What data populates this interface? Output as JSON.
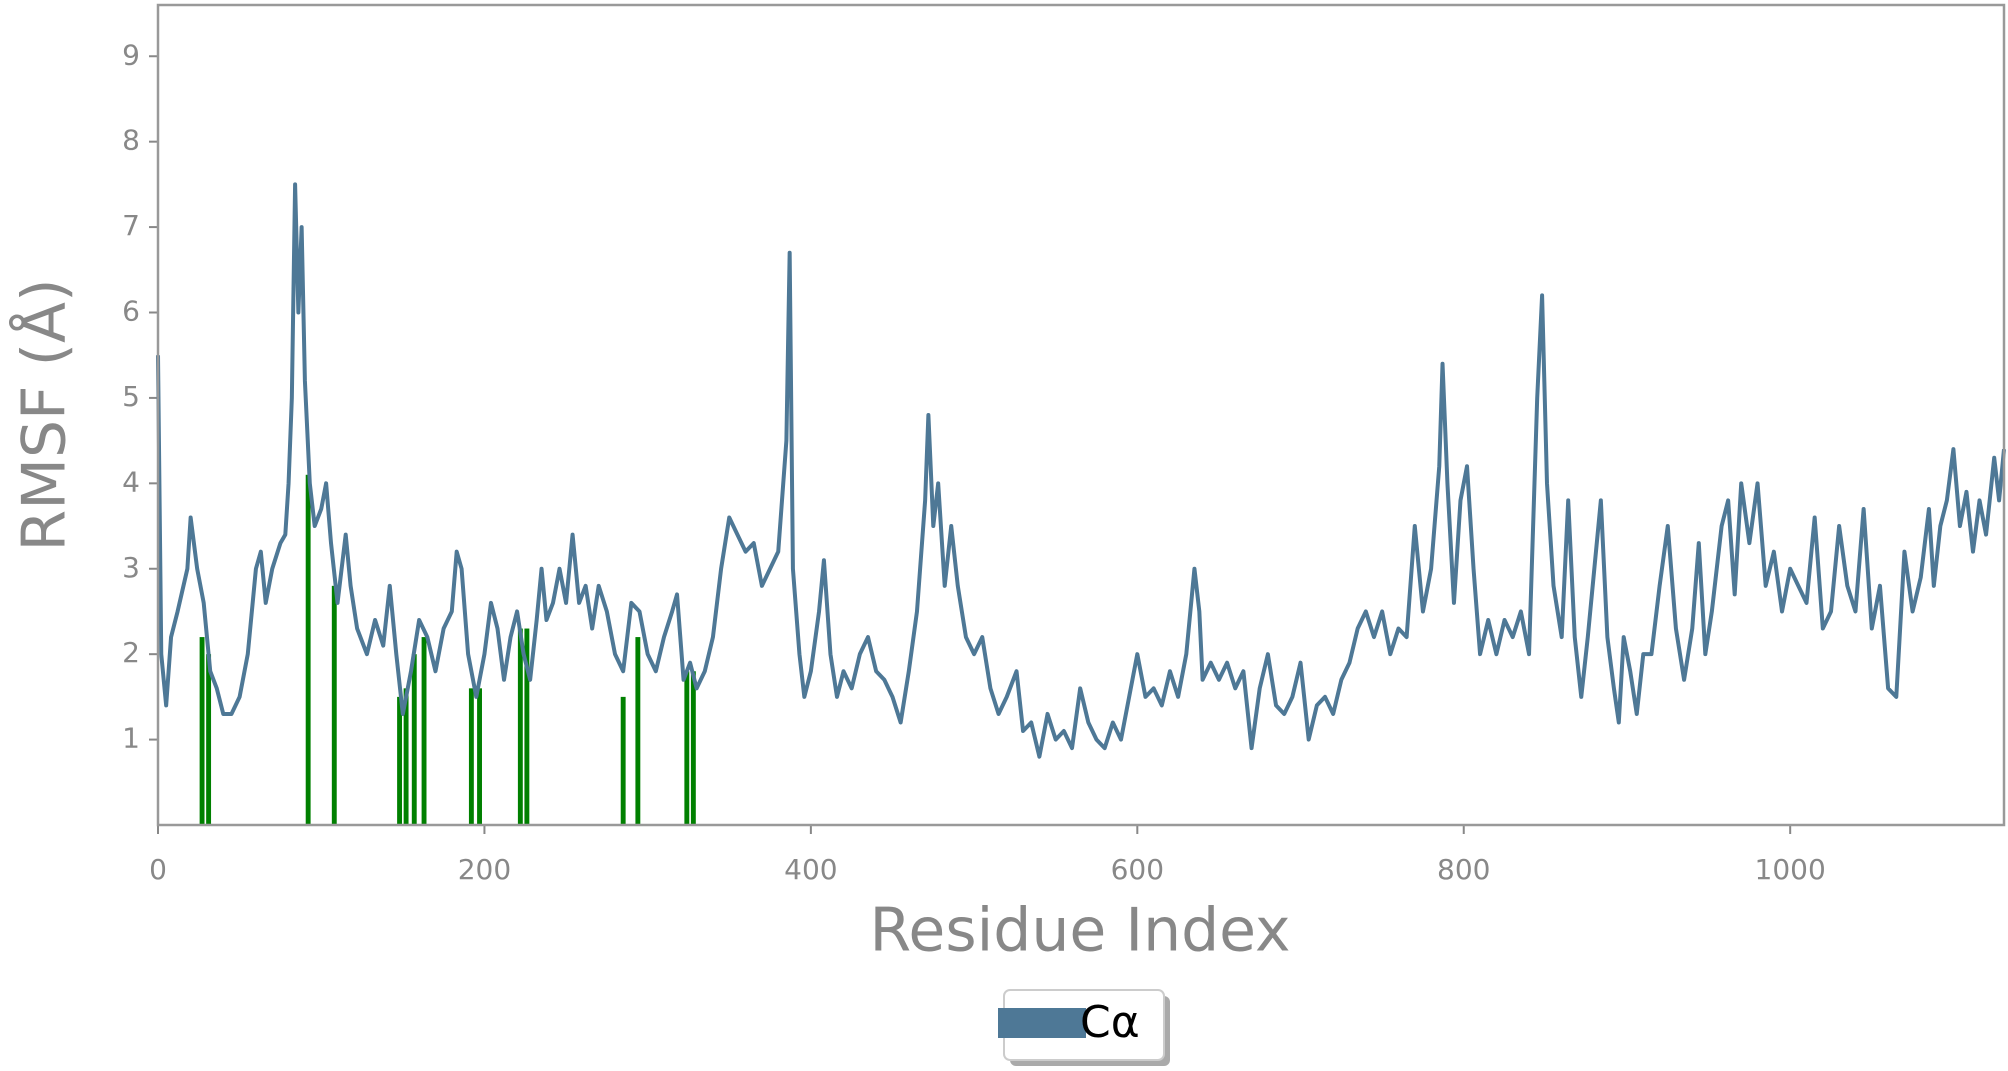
{
  "chart_data": {
    "type": "line",
    "xlabel": "Residue Index",
    "ylabel": "RMSF (Å)",
    "xlim": [
      0,
      1131
    ],
    "ylim": [
      0,
      9.6
    ],
    "xticks": [
      0,
      200,
      400,
      600,
      800,
      1000
    ],
    "yticks": [
      1,
      2,
      3,
      4,
      5,
      6,
      7,
      8,
      9
    ],
    "legend": "below",
    "x": [
      0,
      2,
      5,
      8,
      12,
      18,
      20,
      24,
      28,
      32,
      36,
      40,
      45,
      50,
      55,
      60,
      63,
      66,
      70,
      75,
      78,
      80,
      82,
      84,
      86,
      88,
      90,
      93,
      96,
      100,
      103,
      106,
      110,
      115,
      118,
      122,
      128,
      133,
      138,
      142,
      146,
      150,
      155,
      160,
      165,
      170,
      175,
      180,
      183,
      186,
      190,
      195,
      200,
      204,
      208,
      212,
      216,
      220,
      224,
      228,
      232,
      235,
      238,
      242,
      246,
      250,
      254,
      258,
      262,
      266,
      270,
      275,
      280,
      285,
      290,
      295,
      300,
      305,
      310,
      315,
      318,
      322,
      326,
      330,
      335,
      340,
      345,
      350,
      355,
      360,
      365,
      370,
      375,
      380,
      385,
      387,
      389,
      393,
      396,
      400,
      405,
      408,
      412,
      416,
      420,
      425,
      430,
      435,
      440,
      445,
      450,
      455,
      460,
      465,
      470,
      472,
      475,
      478,
      482,
      486,
      490,
      495,
      500,
      505,
      510,
      515,
      520,
      526,
      530,
      535,
      540,
      545,
      550,
      555,
      560,
      565,
      570,
      575,
      580,
      585,
      590,
      595,
      600,
      605,
      610,
      615,
      620,
      625,
      630,
      635,
      638,
      640,
      645,
      650,
      655,
      660,
      665,
      670,
      675,
      680,
      685,
      690,
      695,
      700,
      705,
      710,
      715,
      720,
      725,
      730,
      735,
      740,
      745,
      750,
      755,
      760,
      765,
      770,
      775,
      780,
      785,
      787,
      790,
      794,
      798,
      802,
      806,
      810,
      815,
      820,
      825,
      830,
      835,
      840,
      845,
      848,
      851,
      855,
      860,
      864,
      868,
      872,
      876,
      880,
      884,
      888,
      892,
      895,
      898,
      902,
      906,
      910,
      915,
      920,
      925,
      930,
      935,
      940,
      944,
      948,
      952,
      958,
      962,
      966,
      970,
      975,
      980,
      985,
      990,
      995,
      1000,
      1005,
      1010,
      1015,
      1020,
      1025,
      1030,
      1035,
      1040,
      1045,
      1050,
      1055,
      1060,
      1065,
      1070,
      1075,
      1080,
      1085,
      1088,
      1092,
      1096,
      1100,
      1104,
      1108,
      1112,
      1116,
      1120,
      1125,
      1128,
      1131
    ],
    "series": [
      {
        "name": "Cα",
        "color": "#4e7896",
        "values": [
          5.5,
          2.0,
          1.4,
          2.2,
          2.5,
          3.0,
          3.6,
          3.0,
          2.6,
          1.8,
          1.6,
          1.3,
          1.3,
          1.5,
          2.0,
          3.0,
          3.2,
          2.6,
          3.0,
          3.3,
          3.4,
          4.0,
          5.0,
          7.5,
          6.0,
          7.0,
          5.2,
          4.0,
          3.5,
          3.7,
          4.0,
          3.3,
          2.6,
          3.4,
          2.8,
          2.3,
          2.0,
          2.4,
          2.1,
          2.8,
          2.0,
          1.3,
          1.8,
          2.4,
          2.2,
          1.8,
          2.3,
          2.5,
          3.2,
          3.0,
          2.0,
          1.5,
          2.0,
          2.6,
          2.3,
          1.7,
          2.2,
          2.5,
          2.0,
          1.7,
          2.4,
          3.0,
          2.4,
          2.6,
          3.0,
          2.6,
          3.4,
          2.6,
          2.8,
          2.3,
          2.8,
          2.5,
          2.0,
          1.8,
          2.6,
          2.5,
          2.0,
          1.8,
          2.2,
          2.5,
          2.7,
          1.7,
          1.9,
          1.6,
          1.8,
          2.2,
          3.0,
          3.6,
          3.4,
          3.2,
          3.3,
          2.8,
          3.0,
          3.2,
          4.5,
          6.7,
          3.0,
          2.0,
          1.5,
          1.8,
          2.5,
          3.1,
          2.0,
          1.5,
          1.8,
          1.6,
          2.0,
          2.2,
          1.8,
          1.7,
          1.5,
          1.2,
          1.8,
          2.5,
          3.8,
          4.8,
          3.5,
          4.0,
          2.8,
          3.5,
          2.8,
          2.2,
          2.0,
          2.2,
          1.6,
          1.3,
          1.5,
          1.8,
          1.1,
          1.2,
          0.8,
          1.3,
          1.0,
          1.1,
          0.9,
          1.6,
          1.2,
          1.0,
          0.9,
          1.2,
          1.0,
          1.5,
          2.0,
          1.5,
          1.6,
          1.4,
          1.8,
          1.5,
          2.0,
          3.0,
          2.5,
          1.7,
          1.9,
          1.7,
          1.9,
          1.6,
          1.8,
          0.9,
          1.6,
          2.0,
          1.4,
          1.3,
          1.5,
          1.9,
          1.0,
          1.4,
          1.5,
          1.3,
          1.7,
          1.9,
          2.3,
          2.5,
          2.2,
          2.5,
          2.0,
          2.3,
          2.2,
          3.5,
          2.5,
          3.0,
          4.2,
          5.4,
          4.0,
          2.6,
          3.8,
          4.2,
          3.0,
          2.0,
          2.4,
          2.0,
          2.4,
          2.2,
          2.5,
          2.0,
          5.0,
          6.2,
          4.0,
          2.8,
          2.2,
          3.8,
          2.2,
          1.5,
          2.2,
          3.0,
          3.8,
          2.2,
          1.6,
          1.2,
          2.2,
          1.8,
          1.3,
          2.0,
          2.0,
          2.8,
          3.5,
          2.3,
          1.7,
          2.3,
          3.3,
          2.0,
          2.5,
          3.5,
          3.8,
          2.7,
          4.0,
          3.3,
          4.0,
          2.8,
          3.2,
          2.5,
          3.0,
          2.8,
          2.6,
          3.6,
          2.3,
          2.5,
          3.5,
          2.8,
          2.5,
          3.7,
          2.3,
          2.8,
          1.6,
          1.5,
          3.2,
          2.5,
          2.9,
          3.7,
          2.8,
          3.5,
          3.8,
          4.4,
          3.5,
          3.9,
          3.2,
          3.8,
          3.4,
          4.3,
          3.8,
          4.4
        ]
      }
    ],
    "bars": {
      "color": "#008000",
      "x": [
        27,
        31,
        92,
        108,
        148,
        152,
        157,
        163,
        192,
        197,
        222,
        226,
        285,
        294,
        324,
        328
      ],
      "values": [
        2.2,
        2.0,
        4.1,
        2.8,
        1.5,
        1.6,
        2.0,
        2.2,
        1.6,
        1.6,
        2.3,
        2.3,
        1.5,
        2.2,
        1.8,
        1.8
      ]
    }
  }
}
